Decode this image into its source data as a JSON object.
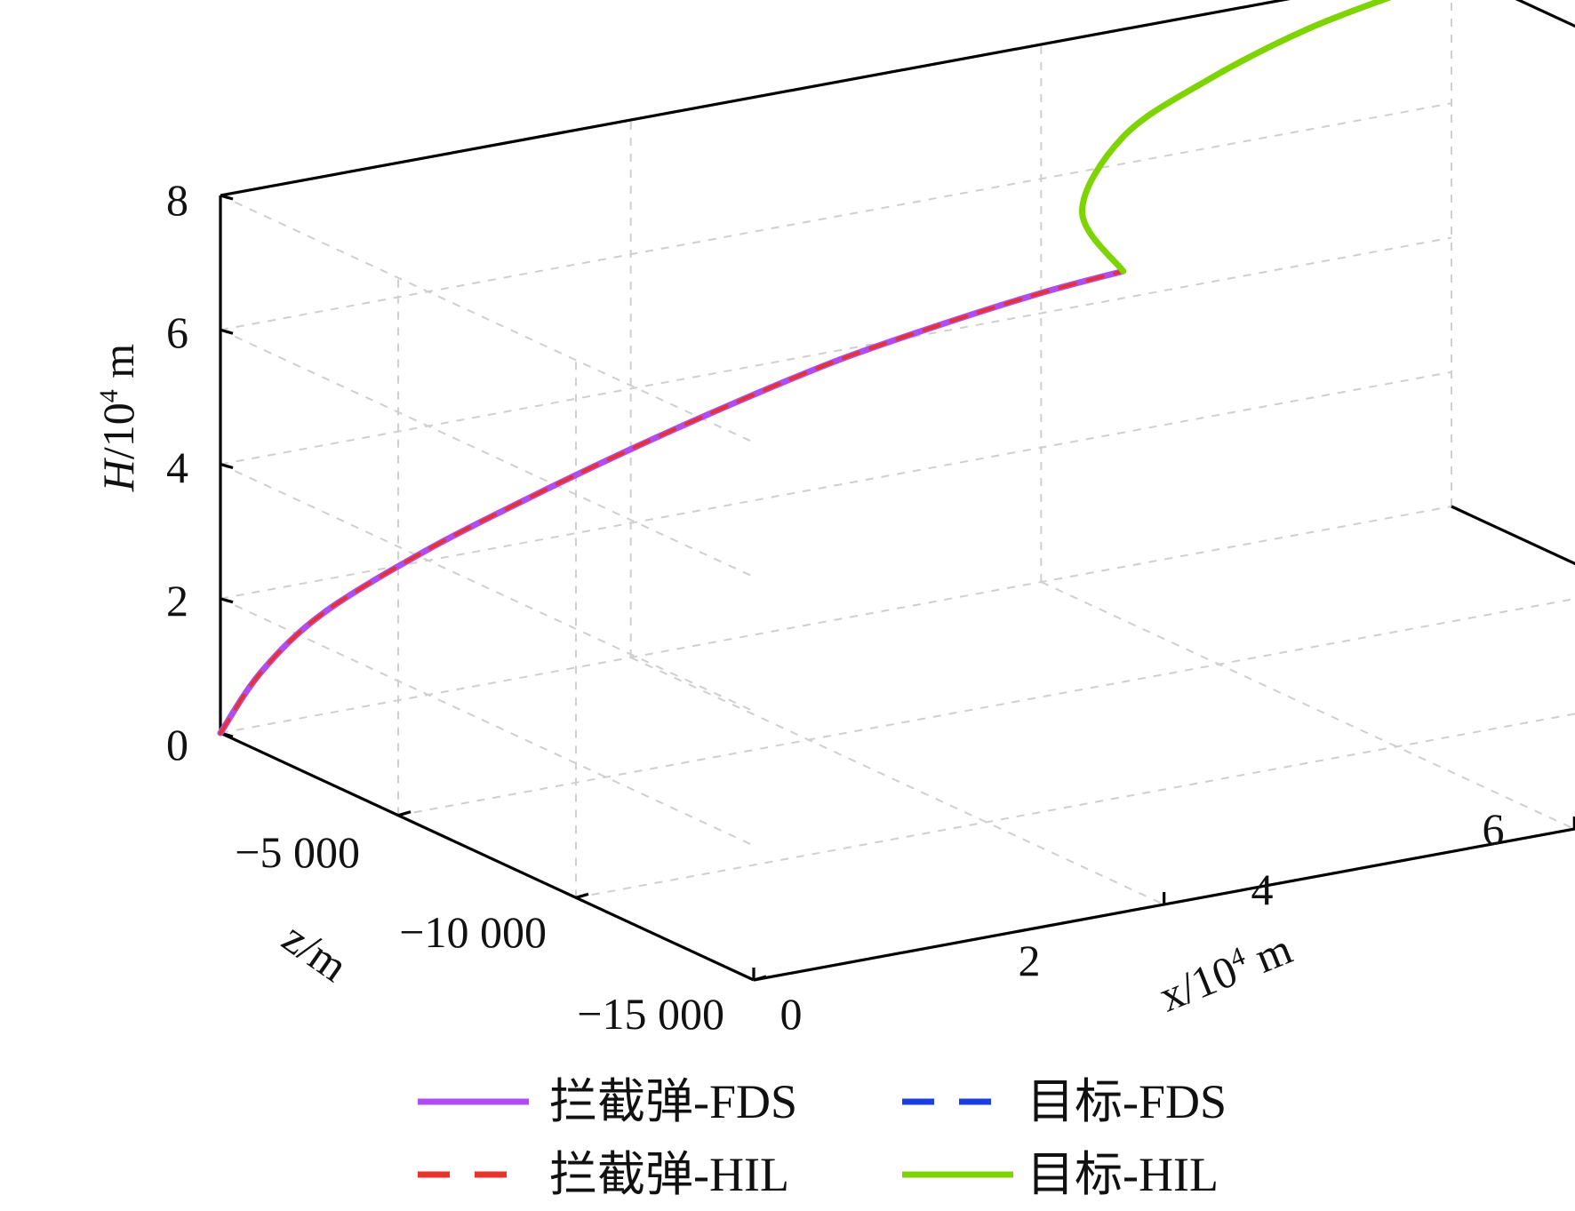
{
  "chart_data": {
    "type": "line",
    "title": "",
    "axes": {
      "x": {
        "label_text": "x/10",
        "label_exp": "4",
        "label_unit": " m",
        "ticks": [
          "0",
          "2",
          "4",
          "6"
        ],
        "tick_values": [
          0,
          2,
          4,
          6
        ],
        "range": [
          0,
          6
        ]
      },
      "z": {
        "label_text": "z/m",
        "ticks": [
          "−5 000",
          "−10 000",
          "−15 000"
        ],
        "tick_values": [
          -5000,
          -10000,
          -15000
        ],
        "range": [
          -15000,
          0
        ]
      },
      "H": {
        "label_var": "H",
        "label_text": "/10",
        "label_exp": "4",
        "label_unit": " m",
        "ticks": [
          "0",
          "2",
          "4",
          "6",
          "8"
        ],
        "tick_values": [
          0,
          2,
          4,
          6,
          8
        ],
        "range": [
          0,
          8
        ]
      }
    },
    "grid": true,
    "legend": {
      "placement": "bottom",
      "columns": 2
    },
    "series": [
      {
        "name": "拦截弹-FDS",
        "color": "#b04df0",
        "dash": "solid",
        "points": [
          [
            0,
            0,
            0
          ],
          [
            0.2,
            0,
            0.8
          ],
          [
            0.5,
            0,
            1.5
          ],
          [
            1,
            0,
            2.15
          ],
          [
            1.5,
            0,
            2.65
          ],
          [
            2,
            0,
            3.1
          ],
          [
            2.5,
            0,
            3.5
          ],
          [
            3,
            0,
            3.85
          ],
          [
            3.5,
            0,
            4.1
          ],
          [
            4,
            0,
            4.3
          ],
          [
            4.4,
            0,
            4.4
          ]
        ]
      },
      {
        "name": "拦截弹-HIL",
        "color": "#e8322b",
        "dash": "dashed",
        "points": [
          [
            0,
            0,
            0
          ],
          [
            0.2,
            0,
            0.8
          ],
          [
            0.5,
            0,
            1.5
          ],
          [
            1,
            0,
            2.15
          ],
          [
            1.5,
            0,
            2.65
          ],
          [
            2,
            0,
            3.1
          ],
          [
            2.5,
            0,
            3.5
          ],
          [
            3,
            0,
            3.85
          ],
          [
            3.5,
            0,
            4.1
          ],
          [
            4,
            0,
            4.3
          ],
          [
            4.4,
            0,
            4.4
          ]
        ]
      },
      {
        "name": "目标-FDS",
        "color": "#1a3fe0",
        "dash": "dashed",
        "points": [
          [
            4.4,
            0,
            4.4
          ],
          [
            4.2,
            0,
            5.4
          ],
          [
            4.4,
            0,
            6.4
          ],
          [
            4.8,
            0,
            7.0
          ],
          [
            5.3,
            0,
            7.5
          ],
          [
            5.8,
            0,
            7.8
          ],
          [
            6,
            0,
            7.9
          ]
        ]
      },
      {
        "name": "目标-HIL",
        "color": "#7ed400",
        "dash": "solid",
        "points": [
          [
            4.4,
            0,
            4.4
          ],
          [
            4.2,
            0,
            5.4
          ],
          [
            4.4,
            0,
            6.4
          ],
          [
            4.8,
            0,
            7.0
          ],
          [
            5.3,
            0,
            7.5
          ],
          [
            5.8,
            0,
            7.8
          ],
          [
            6,
            0,
            7.9
          ]
        ]
      }
    ]
  }
}
